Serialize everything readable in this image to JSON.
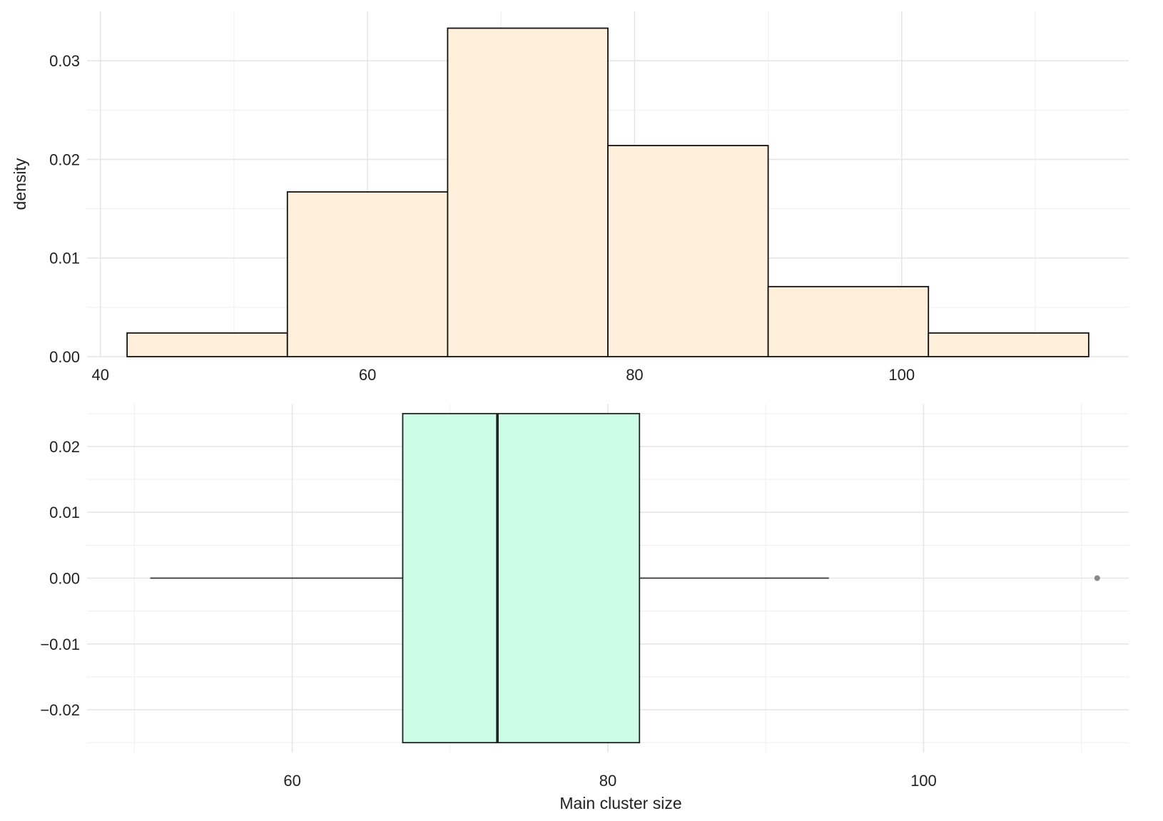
{
  "colors": {
    "hist_fill": "#ffefdb",
    "box_fill": "#ccfde6",
    "outline": "#111111",
    "grid": "#e6e6e6",
    "outlier": "#777777"
  },
  "chart_data": [
    {
      "type": "histogram",
      "xlabel": "",
      "ylabel": "density",
      "xlim": [
        39,
        117
      ],
      "ylim": [
        0,
        0.035
      ],
      "x_ticks": [
        40,
        60,
        80,
        100
      ],
      "x_tick_labels": [
        "40",
        "60",
        "80",
        "100"
      ],
      "y_ticks": [
        0,
        0.01,
        0.02,
        0.03
      ],
      "y_tick_labels": [
        "0.00",
        "0.01",
        "0.02",
        "0.03"
      ],
      "grid": true,
      "bins": [
        {
          "x0": 42,
          "x1": 54,
          "density": 0.0024
        },
        {
          "x0": 54,
          "x1": 66,
          "density": 0.0167
        },
        {
          "x0": 66,
          "x1": 78,
          "density": 0.0333
        },
        {
          "x0": 78,
          "x1": 90,
          "density": 0.0214
        },
        {
          "x0": 90,
          "x1": 102,
          "density": 0.0071
        },
        {
          "x0": 102,
          "x1": 114,
          "density": 0.0024
        }
      ]
    },
    {
      "type": "boxplot",
      "xlabel": "Main cluster size",
      "ylabel": "",
      "xlim": [
        47,
        113
      ],
      "ylim": [
        -0.0265,
        0.0265
      ],
      "x_ticks": [
        60,
        80,
        100
      ],
      "x_tick_labels": [
        "60",
        "80",
        "100"
      ],
      "y_ticks": [
        -0.02,
        -0.01,
        0,
        0.01,
        0.02
      ],
      "y_tick_labels": [
        "−0.02",
        "−0.01",
        "0.00",
        "0.01",
        "0.02"
      ],
      "grid": true,
      "box": {
        "min": 51,
        "q1": 67,
        "median": 73,
        "q3": 82,
        "max": 94,
        "outliers": [
          111
        ],
        "y_center": 0,
        "half_width": 0.025
      }
    }
  ]
}
